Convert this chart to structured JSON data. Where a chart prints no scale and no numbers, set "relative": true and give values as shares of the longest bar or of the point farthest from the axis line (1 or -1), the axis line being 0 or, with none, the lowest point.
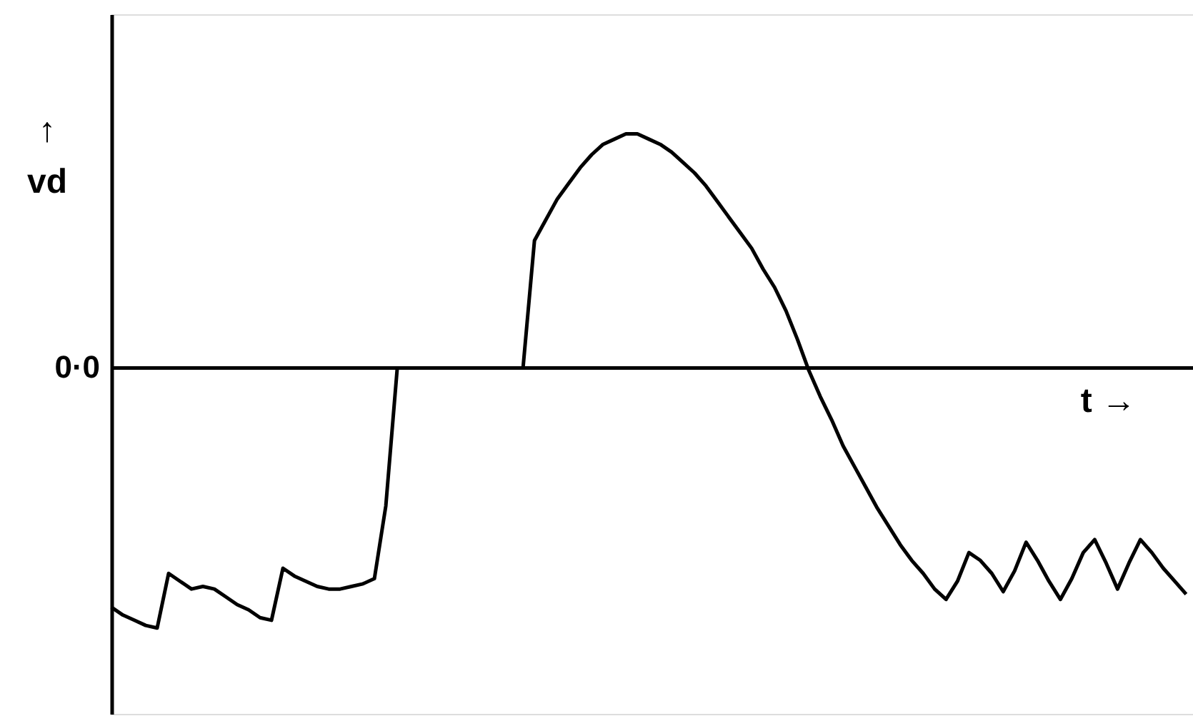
{
  "chart_data": {
    "type": "line",
    "relative": true,
    "xlabel": "t →",
    "ylabel": "↑ vd",
    "annotations": [
      "0·0"
    ],
    "marker": "none",
    "line_style": "solid",
    "categories": [
      null,
      null,
      null,
      null,
      null,
      null,
      null,
      null,
      null,
      null,
      null,
      null,
      null,
      null,
      null,
      null,
      null,
      null,
      null,
      null,
      null,
      null,
      null,
      null,
      null,
      null,
      null,
      null,
      null,
      null,
      null,
      null,
      null,
      null,
      null,
      null,
      null,
      null,
      null,
      null,
      null,
      null,
      null,
      null,
      null,
      null,
      null,
      null,
      null,
      null,
      null,
      null,
      null,
      null,
      null,
      null,
      null,
      null,
      null,
      null,
      null,
      null,
      null,
      null,
      null,
      null,
      null,
      null,
      null,
      null,
      null,
      null,
      null,
      null,
      null,
      null,
      null,
      null,
      null,
      null,
      null,
      null,
      null,
      null,
      null,
      null,
      null,
      null,
      null,
      null,
      null,
      null,
      null,
      null,
      null
    ],
    "series": [
      {
        "color": "#000000",
        "values": [
          -0.92,
          -0.95,
          -0.97,
          -0.99,
          -1.0,
          -0.79,
          -0.82,
          -0.85,
          -0.84,
          -0.85,
          -0.88,
          -0.91,
          -0.93,
          -0.96,
          -0.97,
          -0.77,
          -0.8,
          -0.82,
          -0.84,
          -0.85,
          -0.85,
          -0.84,
          -0.83,
          -0.81,
          -0.53,
          0,
          0,
          0,
          0,
          0,
          0,
          0,
          0,
          0,
          0,
          0,
          0,
          0.49,
          0.57,
          0.65,
          0.71,
          0.77,
          0.82,
          0.86,
          0.88,
          0.9,
          0.9,
          0.88,
          0.86,
          0.83,
          0.79,
          0.75,
          0.7,
          0.64,
          0.58,
          0.52,
          0.46,
          0.38,
          0.31,
          0.22,
          0.11,
          -0.01,
          -0.11,
          -0.2,
          -0.3,
          -0.38,
          -0.46,
          -0.54,
          -0.61,
          -0.68,
          -0.74,
          -0.79,
          -0.85,
          -0.89,
          -0.82,
          -0.71,
          -0.74,
          -0.79,
          -0.86,
          -0.78,
          -0.67,
          -0.74,
          -0.82,
          -0.89,
          -0.81,
          -0.71,
          -0.66,
          -0.75,
          -0.85,
          -0.75,
          -0.66,
          -0.71,
          -0.77,
          -0.82,
          -0.87
        ]
      }
    ]
  }
}
